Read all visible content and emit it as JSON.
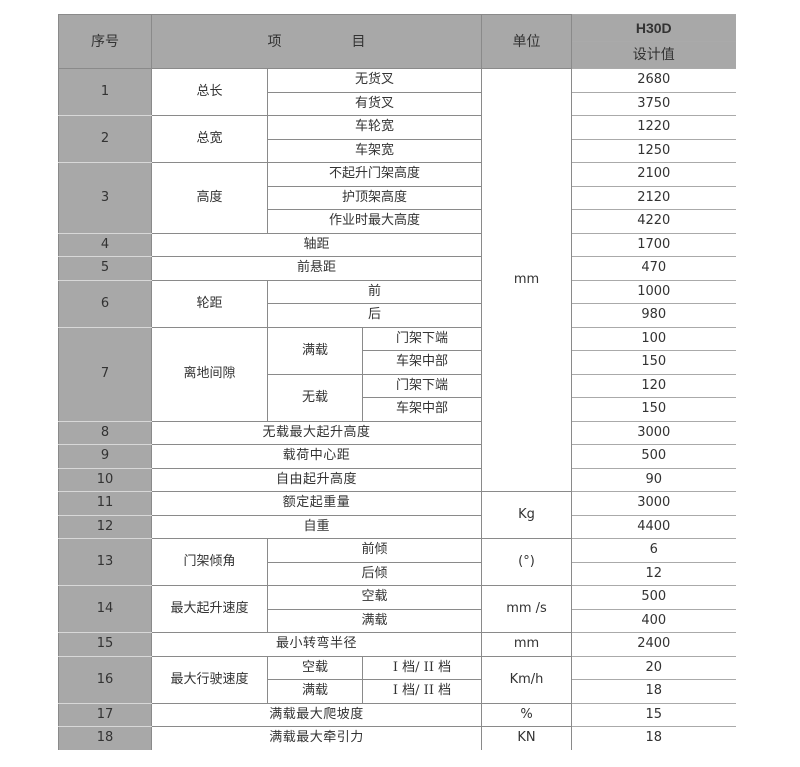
{
  "header": {
    "seq": "序号",
    "item_a": "项",
    "item_b": "目",
    "unit": "单位",
    "model": "H30D",
    "design": "设计值"
  },
  "units": {
    "mm": "mm",
    "kg": "Kg",
    "deg": "(°)",
    "mms": "mm /s",
    "mm2": "mm",
    "kmh": "Km/h",
    "pct": "%",
    "kn": "KN"
  },
  "rows": [
    {
      "no": "1",
      "item": "总长",
      "subs": [
        {
          "label": "无货叉",
          "value": "2680"
        },
        {
          "label": "有货叉",
          "value": "3750"
        }
      ]
    },
    {
      "no": "2",
      "item": "总宽",
      "subs": [
        {
          "label": "车轮宽",
          "value": "1220"
        },
        {
          "label": "车架宽",
          "value": "1250"
        }
      ]
    },
    {
      "no": "3",
      "item": "高度",
      "subs": [
        {
          "label": "不起升门架高度",
          "value": "2100"
        },
        {
          "label": "护顶架高度",
          "value": "2120"
        },
        {
          "label": "作业时最大高度",
          "value": "4220"
        }
      ]
    },
    {
      "no": "4",
      "item": "轴距",
      "value": "1700"
    },
    {
      "no": "5",
      "item": "前悬距",
      "value": "470"
    },
    {
      "no": "6",
      "item": "轮距",
      "subs": [
        {
          "label": "前",
          "value": "1000"
        },
        {
          "label": "后",
          "value": "980"
        }
      ]
    },
    {
      "no": "7",
      "item": "离地间隙",
      "groups": [
        {
          "label": "满载",
          "subs": [
            {
              "label": "门架下端",
              "value": "100"
            },
            {
              "label": "车架中部",
              "value": "150"
            }
          ]
        },
        {
          "label": "无载",
          "subs": [
            {
              "label": "门架下端",
              "value": "120"
            },
            {
              "label": "车架中部",
              "value": "150"
            }
          ]
        }
      ]
    },
    {
      "no": "8",
      "item": "无载最大起升高度",
      "value": "3000"
    },
    {
      "no": "9",
      "item": "载荷中心距",
      "value": "500"
    },
    {
      "no": "10",
      "item": "自由起升高度",
      "value": "90"
    },
    {
      "no": "11",
      "item": "额定起重量",
      "value": "3000"
    },
    {
      "no": "12",
      "item": "自重",
      "value": "4400"
    },
    {
      "no": "13",
      "item": "门架倾角",
      "subs": [
        {
          "label": "前倾",
          "value": "6"
        },
        {
          "label": "后倾",
          "value": "12"
        }
      ]
    },
    {
      "no": "14",
      "item": "最大起升速度",
      "subs": [
        {
          "label": "空载",
          "value": "500"
        },
        {
          "label": "满载",
          "value": "400"
        }
      ]
    },
    {
      "no": "15",
      "item": "最小转弯半径",
      "value": "2400"
    },
    {
      "no": "16",
      "item": "最大行驶速度",
      "subs": [
        {
          "label": "空载",
          "gear": "I 档/ II 档",
          "value": "20"
        },
        {
          "label": "满载",
          "gear": "I 档/ II 档",
          "value": "18"
        }
      ]
    },
    {
      "no": "17",
      "item": "满载最大爬坡度",
      "value": "15"
    },
    {
      "no": "18",
      "item": "满载最大牵引力",
      "value": "18"
    }
  ]
}
